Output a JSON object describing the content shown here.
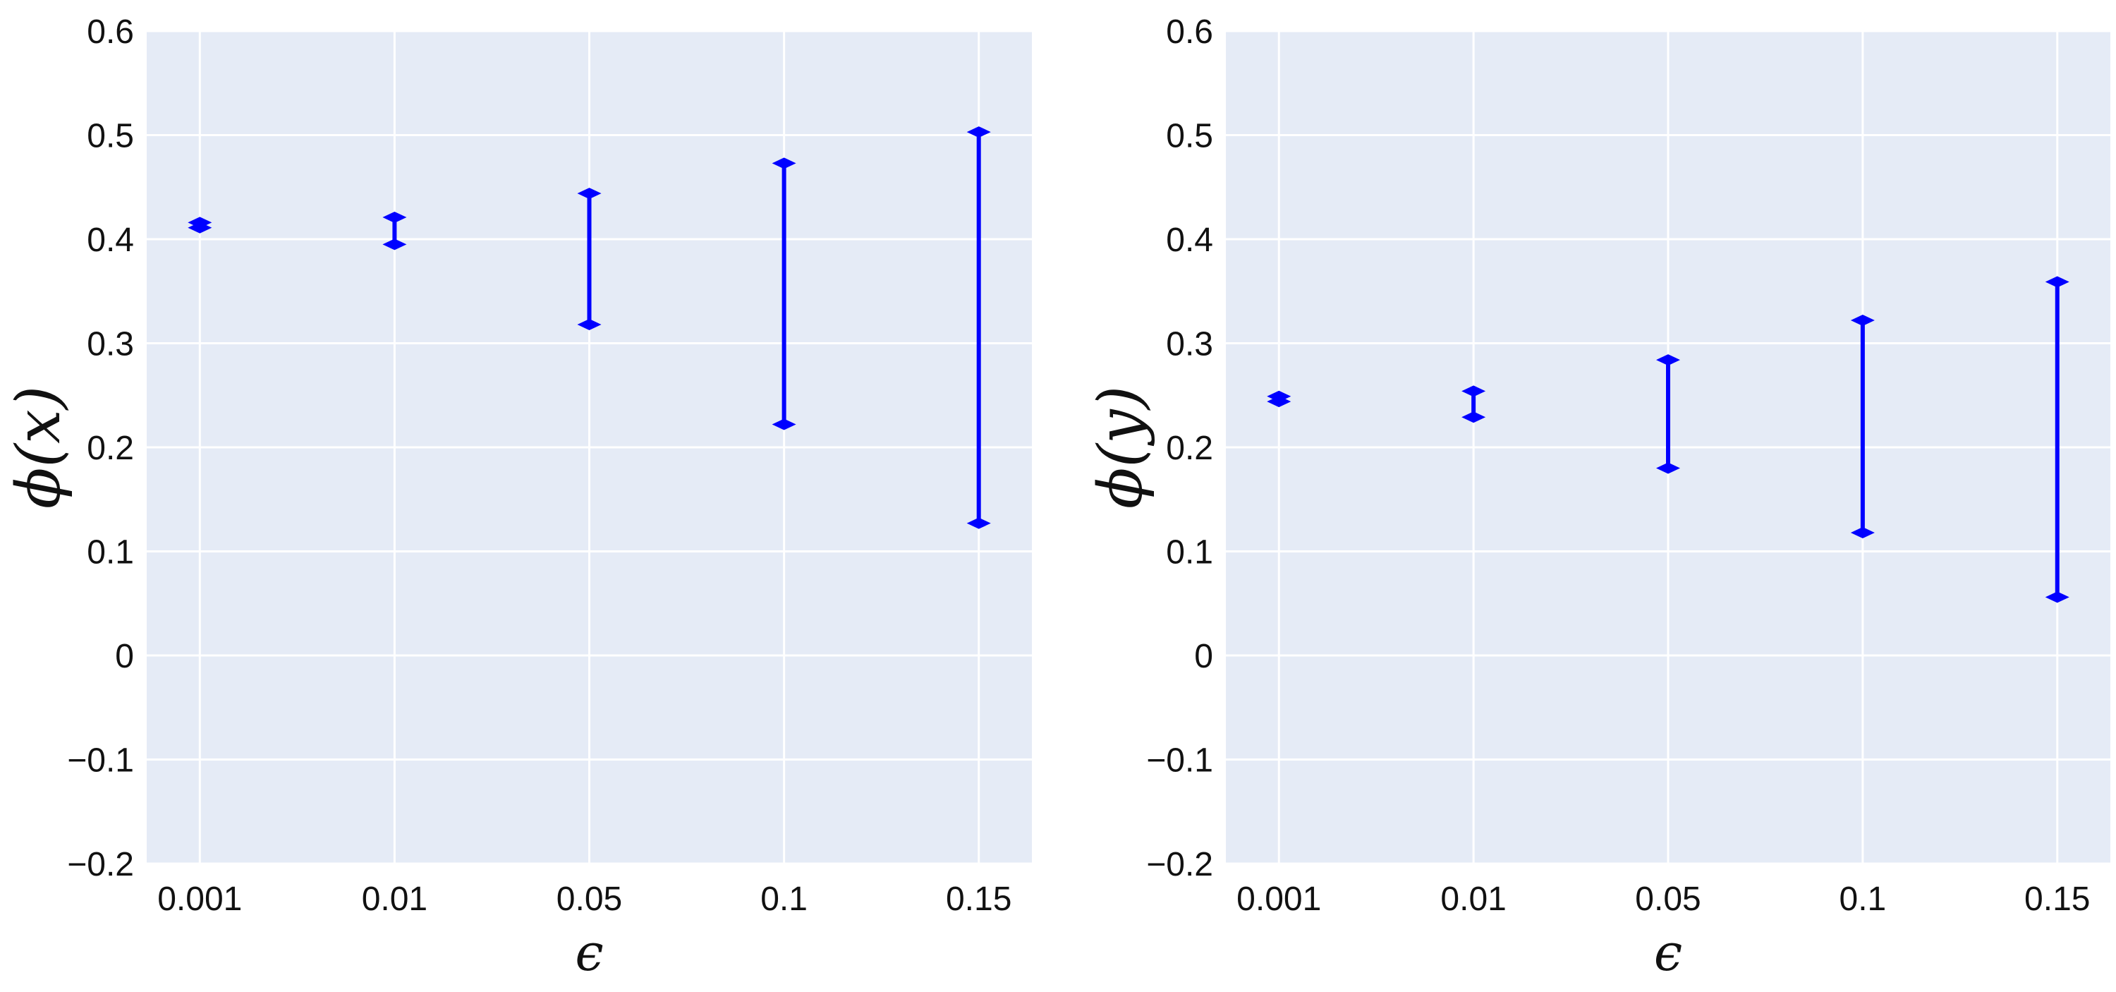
{
  "chart_data": [
    {
      "type": "errorbar",
      "xlabel": "ϵ",
      "ylabel": "ϕ(x)",
      "categories": [
        "0.001",
        "0.01",
        "0.05",
        "0.1",
        "0.15"
      ],
      "series": [
        {
          "lower": [
            0.411,
            0.395,
            0.318,
            0.222,
            0.127
          ],
          "upper": [
            0.416,
            0.421,
            0.444,
            0.473,
            0.503
          ]
        }
      ],
      "ylim": [
        -0.2,
        0.6
      ],
      "yticks": [
        "−0.2",
        "−0.1",
        "0",
        "0.1",
        "0.2",
        "0.3",
        "0.4",
        "0.5",
        "0.6"
      ],
      "grid": true,
      "color": "#0000ff",
      "background": "#e5ebf6"
    },
    {
      "type": "errorbar",
      "xlabel": "ϵ",
      "ylabel": "ϕ(y)",
      "categories": [
        "0.001",
        "0.01",
        "0.05",
        "0.1",
        "0.15"
      ],
      "series": [
        {
          "lower": [
            0.244,
            0.229,
            0.18,
            0.118,
            0.056
          ],
          "upper": [
            0.249,
            0.254,
            0.284,
            0.322,
            0.359
          ]
        }
      ],
      "ylim": [
        -0.2,
        0.6
      ],
      "yticks": [
        "−0.2",
        "−0.1",
        "0",
        "0.1",
        "0.2",
        "0.3",
        "0.4",
        "0.5",
        "0.6"
      ],
      "grid": true,
      "color": "#0000ff",
      "background": "#e5ebf6"
    }
  ]
}
